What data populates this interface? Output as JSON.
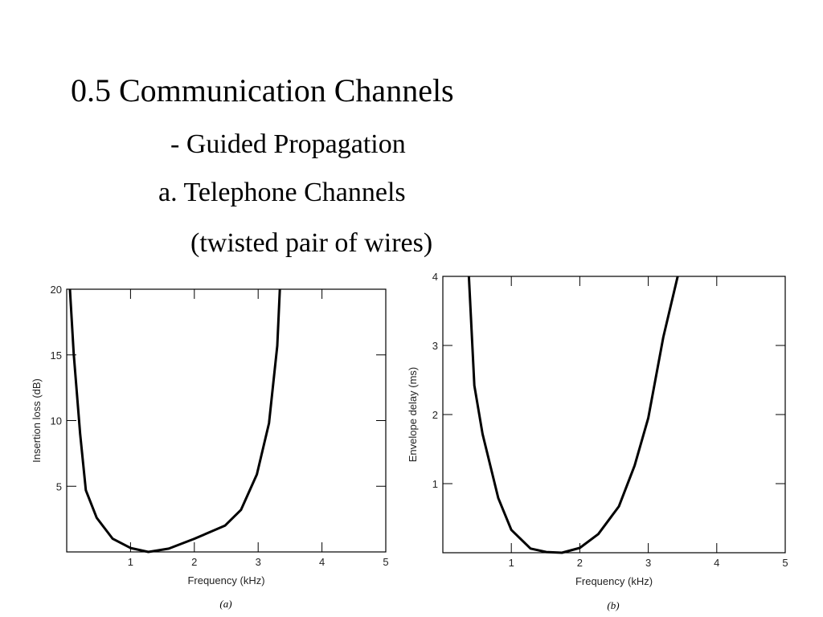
{
  "slide": {
    "title": "0.5 Communication Channels",
    "subtitle": "- Guided Propagation",
    "heading": "a. Telephone Channels",
    "note": "(twisted pair of wires)"
  },
  "chart_data": [
    {
      "type": "line",
      "caption": "(a)",
      "x_label": "Frequency (kHz)",
      "y_label": "Insertion loss (dB)",
      "color": "#000000",
      "x": [
        0.05,
        0.11,
        0.21,
        0.3,
        0.47,
        0.72,
        1.0,
        1.28,
        1.6,
        2.0,
        2.48,
        2.73,
        2.98,
        3.17,
        3.3,
        3.34
      ],
      "values": [
        20,
        15.1,
        9,
        4.7,
        2.6,
        1.0,
        0.3,
        0,
        0.25,
        1.0,
        2.0,
        3.2,
        5.9,
        9.8,
        15.7,
        20
      ],
      "xlim": [
        0,
        5
      ],
      "xticks": [
        1,
        2,
        3,
        4,
        5
      ],
      "ylim": [
        0,
        20
      ],
      "yticks": [
        5,
        10,
        15,
        20
      ]
    },
    {
      "type": "line",
      "caption": "(b)",
      "x_label": "Frequency (kHz)",
      "y_label": "Envelope delay (ms)",
      "color": "#000000",
      "x": [
        0.38,
        0.46,
        0.58,
        0.81,
        1.0,
        1.28,
        1.51,
        1.74,
        2.0,
        2.27,
        2.57,
        2.8,
        3.0,
        3.22,
        3.43
      ],
      "values": [
        4,
        2.42,
        1.72,
        0.79,
        0.33,
        0.06,
        0.01,
        0,
        0.07,
        0.27,
        0.67,
        1.26,
        1.95,
        3.12,
        4
      ],
      "xlim": [
        0,
        5
      ],
      "xticks": [
        1,
        2,
        3,
        4,
        5
      ],
      "ylim": [
        0,
        4
      ],
      "yticks": [
        1,
        2,
        3,
        4
      ]
    }
  ]
}
